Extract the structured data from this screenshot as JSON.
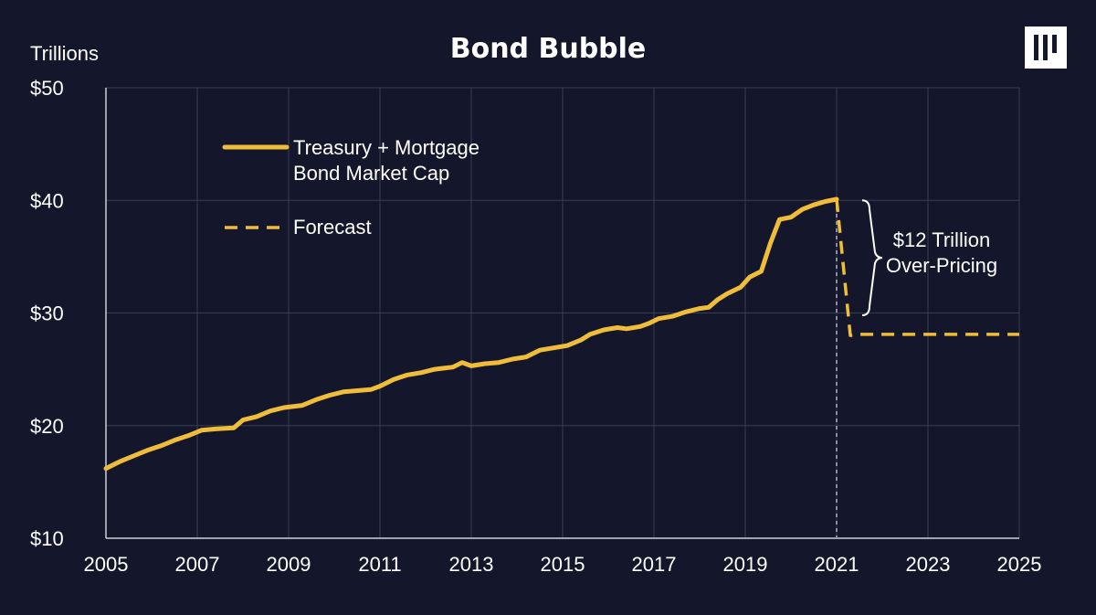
{
  "chart_data": {
    "type": "line",
    "title": "Bond Bubble",
    "ylabel": "Trillions",
    "xlim": [
      2005,
      2025
    ],
    "ylim": [
      10,
      50
    ],
    "y_ticks": [
      {
        "value": 10,
        "label": "$10"
      },
      {
        "value": 20,
        "label": "$20"
      },
      {
        "value": 30,
        "label": "$30"
      },
      {
        "value": 40,
        "label": "$40"
      },
      {
        "value": 50,
        "label": "$50"
      }
    ],
    "x_ticks": [
      "2005",
      "2007",
      "2009",
      "2011",
      "2013",
      "2015",
      "2017",
      "2019",
      "2021",
      "2023",
      "2025"
    ],
    "grid": true,
    "legend_position": "top-left",
    "series": [
      {
        "name": "Treasury + Mortgage Bond Market Cap",
        "legend_lines": [
          "Treasury + Mortgage",
          "Bond Market Cap"
        ],
        "style": "solid",
        "color": "#f0bd3a",
        "x": [
          2005.0,
          2005.3,
          2005.6,
          2005.9,
          2006.2,
          2006.5,
          2006.8,
          2007.1,
          2007.4,
          2007.8,
          2008.0,
          2008.3,
          2008.6,
          2008.9,
          2009.3,
          2009.6,
          2009.9,
          2010.2,
          2010.5,
          2010.8,
          2011.0,
          2011.3,
          2011.6,
          2011.9,
          2012.2,
          2012.4,
          2012.6,
          2012.8,
          2013.0,
          2013.3,
          2013.6,
          2013.9,
          2014.2,
          2014.5,
          2014.8,
          2015.1,
          2015.4,
          2015.6,
          2015.9,
          2016.2,
          2016.4,
          2016.7,
          2016.9,
          2017.1,
          2017.4,
          2017.7,
          2018.0,
          2018.2,
          2018.4,
          2018.6,
          2018.9,
          2019.1,
          2019.35,
          2019.55,
          2019.75,
          2020.0,
          2020.25,
          2020.5,
          2020.75,
          2021.0
        ],
        "values": [
          16.2,
          16.8,
          17.3,
          17.8,
          18.2,
          18.7,
          19.1,
          19.6,
          19.7,
          19.8,
          20.5,
          20.8,
          21.3,
          21.6,
          21.8,
          22.3,
          22.7,
          23.0,
          23.1,
          23.2,
          23.5,
          24.1,
          24.5,
          24.7,
          25.0,
          25.1,
          25.2,
          25.6,
          25.3,
          25.5,
          25.6,
          25.9,
          26.1,
          26.7,
          26.9,
          27.1,
          27.6,
          28.1,
          28.5,
          28.7,
          28.6,
          28.8,
          29.1,
          29.5,
          29.7,
          30.1,
          30.4,
          30.5,
          31.2,
          31.7,
          32.3,
          33.2,
          33.7,
          36.2,
          38.3,
          38.5,
          39.2,
          39.6,
          39.9,
          40.1
        ]
      },
      {
        "name": "Forecast",
        "style": "dashed",
        "color": "#f0bd3a",
        "x": [
          2021.0,
          2021.3,
          2021.5,
          2025.0
        ],
        "values": [
          40.1,
          28.0,
          28.1,
          28.1
        ]
      }
    ],
    "annotations": [
      {
        "type": "vline",
        "x": 2021,
        "color": "#8a8d99"
      },
      {
        "type": "brace",
        "x": 2021.4,
        "y_from": 40.0,
        "y_to": 29.8,
        "lines": [
          "$12 Trillion",
          "Over-Pricing"
        ]
      }
    ]
  },
  "colors": {
    "background": "#14172b",
    "grid": "#3a3d52",
    "axis": "#cfd0d6",
    "text": "#ffffff",
    "line": "#f0bd3a",
    "vline": "#8a8d99"
  },
  "logo": {
    "icon": "pillar-bars-logo"
  }
}
